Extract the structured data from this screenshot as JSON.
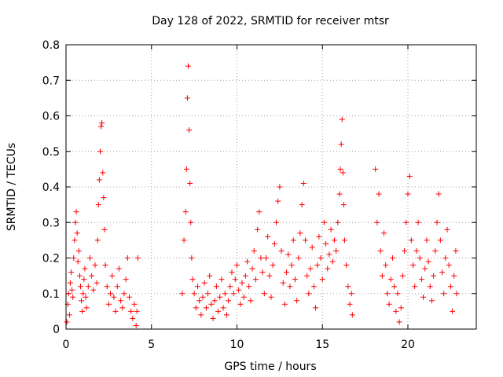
{
  "chart_data": {
    "type": "scatter",
    "title": "Day 128 of 2022, SRMTID for receiver mtsr",
    "xlabel": "GPS time / hours",
    "ylabel": "SRMTID / TECUs",
    "xlim": [
      0,
      24
    ],
    "ylim": [
      0,
      0.8
    ],
    "x_ticks": [
      0,
      5,
      10,
      15,
      20
    ],
    "x_tick_labels": [
      "0",
      "5",
      "10",
      "15",
      "20"
    ],
    "y_ticks": [
      0,
      0.1,
      0.2,
      0.3,
      0.4,
      0.5,
      0.6,
      0.7,
      0.8
    ],
    "y_tick_labels": [
      "0",
      "0.1",
      "0.2",
      "0.3",
      "0.4",
      "0.5",
      "0.6",
      "0.7",
      "0.8"
    ],
    "grid": true,
    "marker": "+",
    "marker_color": "#ff0000",
    "series": [
      {
        "name": "SRMTID",
        "points": [
          [
            0.05,
            0.02
          ],
          [
            0.1,
            0.07
          ],
          [
            0.15,
            0.1
          ],
          [
            0.2,
            0.04
          ],
          [
            0.25,
            0.13
          ],
          [
            0.3,
            0.16
          ],
          [
            0.35,
            0.11
          ],
          [
            0.4,
            0.09
          ],
          [
            0.45,
            0.2
          ],
          [
            0.5,
            0.25
          ],
          [
            0.55,
            0.3
          ],
          [
            0.6,
            0.33
          ],
          [
            0.65,
            0.27
          ],
          [
            0.7,
            0.19
          ],
          [
            0.75,
            0.22
          ],
          [
            0.8,
            0.15
          ],
          [
            0.85,
            0.12
          ],
          [
            0.9,
            0.08
          ],
          [
            0.95,
            0.05
          ],
          [
            1.0,
            0.1
          ],
          [
            1.05,
            0.14
          ],
          [
            1.1,
            0.17
          ],
          [
            1.15,
            0.09
          ],
          [
            1.2,
            0.06
          ],
          [
            1.3,
            0.12
          ],
          [
            1.4,
            0.2
          ],
          [
            1.5,
            0.15
          ],
          [
            1.6,
            0.11
          ],
          [
            1.7,
            0.18
          ],
          [
            1.8,
            0.13
          ],
          [
            1.85,
            0.25
          ],
          [
            1.9,
            0.35
          ],
          [
            1.95,
            0.42
          ],
          [
            2.0,
            0.5
          ],
          [
            2.05,
            0.57
          ],
          [
            2.1,
            0.58
          ],
          [
            2.15,
            0.44
          ],
          [
            2.2,
            0.37
          ],
          [
            2.25,
            0.28
          ],
          [
            2.3,
            0.18
          ],
          [
            2.4,
            0.12
          ],
          [
            2.5,
            0.07
          ],
          [
            2.6,
            0.1
          ],
          [
            2.7,
            0.15
          ],
          [
            2.8,
            0.09
          ],
          [
            2.9,
            0.05
          ],
          [
            3.0,
            0.12
          ],
          [
            3.1,
            0.17
          ],
          [
            3.2,
            0.08
          ],
          [
            3.3,
            0.06
          ],
          [
            3.4,
            0.1
          ],
          [
            3.5,
            0.14
          ],
          [
            3.6,
            0.2
          ],
          [
            3.7,
            0.09
          ],
          [
            3.8,
            0.05
          ],
          [
            3.9,
            0.03
          ],
          [
            4.0,
            0.07
          ],
          [
            4.1,
            0.01
          ],
          [
            4.15,
            0.05
          ],
          [
            4.2,
            0.2
          ],
          [
            6.8,
            0.1
          ],
          [
            6.9,
            0.25
          ],
          [
            7.0,
            0.33
          ],
          [
            7.05,
            0.45
          ],
          [
            7.1,
            0.65
          ],
          [
            7.15,
            0.74
          ],
          [
            7.2,
            0.56
          ],
          [
            7.25,
            0.41
          ],
          [
            7.3,
            0.3
          ],
          [
            7.35,
            0.2
          ],
          [
            7.4,
            0.14
          ],
          [
            7.5,
            0.1
          ],
          [
            7.6,
            0.06
          ],
          [
            7.7,
            0.12
          ],
          [
            7.8,
            0.08
          ],
          [
            7.9,
            0.04
          ],
          [
            8.0,
            0.09
          ],
          [
            8.1,
            0.13
          ],
          [
            8.2,
            0.06
          ],
          [
            8.3,
            0.1
          ],
          [
            8.4,
            0.15
          ],
          [
            8.5,
            0.07
          ],
          [
            8.6,
            0.03
          ],
          [
            8.7,
            0.08
          ],
          [
            8.8,
            0.12
          ],
          [
            8.9,
            0.05
          ],
          [
            9.0,
            0.09
          ],
          [
            9.1,
            0.14
          ],
          [
            9.2,
            0.06
          ],
          [
            9.3,
            0.1
          ],
          [
            9.4,
            0.04
          ],
          [
            9.5,
            0.08
          ],
          [
            9.6,
            0.12
          ],
          [
            9.7,
            0.16
          ],
          [
            9.8,
            0.1
          ],
          [
            9.9,
            0.14
          ],
          [
            10.0,
            0.18
          ],
          [
            10.1,
            0.11
          ],
          [
            10.2,
            0.07
          ],
          [
            10.3,
            0.13
          ],
          [
            10.4,
            0.09
          ],
          [
            10.5,
            0.15
          ],
          [
            10.6,
            0.19
          ],
          [
            10.7,
            0.12
          ],
          [
            10.8,
            0.08
          ],
          [
            10.9,
            0.17
          ],
          [
            11.0,
            0.22
          ],
          [
            11.1,
            0.14
          ],
          [
            11.2,
            0.28
          ],
          [
            11.3,
            0.33
          ],
          [
            11.4,
            0.2
          ],
          [
            11.5,
            0.16
          ],
          [
            11.6,
            0.1
          ],
          [
            11.7,
            0.2
          ],
          [
            11.8,
            0.26
          ],
          [
            11.9,
            0.15
          ],
          [
            12.0,
            0.09
          ],
          [
            12.1,
            0.18
          ],
          [
            12.2,
            0.24
          ],
          [
            12.3,
            0.3
          ],
          [
            12.4,
            0.36
          ],
          [
            12.5,
            0.4
          ],
          [
            12.6,
            0.22
          ],
          [
            12.7,
            0.13
          ],
          [
            12.8,
            0.07
          ],
          [
            12.9,
            0.16
          ],
          [
            13.0,
            0.21
          ],
          [
            13.1,
            0.12
          ],
          [
            13.2,
            0.18
          ],
          [
            13.3,
            0.25
          ],
          [
            13.4,
            0.14
          ],
          [
            13.5,
            0.08
          ],
          [
            13.6,
            0.2
          ],
          [
            13.7,
            0.27
          ],
          [
            13.8,
            0.35
          ],
          [
            13.9,
            0.41
          ],
          [
            14.0,
            0.25
          ],
          [
            14.1,
            0.15
          ],
          [
            14.2,
            0.1
          ],
          [
            14.3,
            0.17
          ],
          [
            14.4,
            0.23
          ],
          [
            14.5,
            0.12
          ],
          [
            14.6,
            0.06
          ],
          [
            14.7,
            0.18
          ],
          [
            14.8,
            0.26
          ],
          [
            14.9,
            0.2
          ],
          [
            15.0,
            0.14
          ],
          [
            15.1,
            0.3
          ],
          [
            15.2,
            0.24
          ],
          [
            15.3,
            0.17
          ],
          [
            15.4,
            0.21
          ],
          [
            15.5,
            0.28
          ],
          [
            15.6,
            0.19
          ],
          [
            15.7,
            0.25
          ],
          [
            15.8,
            0.22
          ],
          [
            15.9,
            0.3
          ],
          [
            16.0,
            0.38
          ],
          [
            16.05,
            0.45
          ],
          [
            16.1,
            0.52
          ],
          [
            16.15,
            0.59
          ],
          [
            16.2,
            0.44
          ],
          [
            16.25,
            0.35
          ],
          [
            16.3,
            0.25
          ],
          [
            16.4,
            0.18
          ],
          [
            16.5,
            0.12
          ],
          [
            16.6,
            0.07
          ],
          [
            16.7,
            0.1
          ],
          [
            16.75,
            0.04
          ],
          [
            18.1,
            0.45
          ],
          [
            18.2,
            0.3
          ],
          [
            18.3,
            0.38
          ],
          [
            18.4,
            0.22
          ],
          [
            18.5,
            0.15
          ],
          [
            18.6,
            0.27
          ],
          [
            18.7,
            0.18
          ],
          [
            18.8,
            0.1
          ],
          [
            18.9,
            0.07
          ],
          [
            19.0,
            0.14
          ],
          [
            19.1,
            0.2
          ],
          [
            19.2,
            0.12
          ],
          [
            19.3,
            0.05
          ],
          [
            19.4,
            0.1
          ],
          [
            19.5,
            0.02
          ],
          [
            19.6,
            0.06
          ],
          [
            19.7,
            0.15
          ],
          [
            19.8,
            0.22
          ],
          [
            19.9,
            0.3
          ],
          [
            20.0,
            0.38
          ],
          [
            20.1,
            0.43
          ],
          [
            20.2,
            0.25
          ],
          [
            20.3,
            0.18
          ],
          [
            20.4,
            0.12
          ],
          [
            20.5,
            0.22
          ],
          [
            20.6,
            0.3
          ],
          [
            20.7,
            0.2
          ],
          [
            20.8,
            0.14
          ],
          [
            20.9,
            0.09
          ],
          [
            21.0,
            0.17
          ],
          [
            21.1,
            0.25
          ],
          [
            21.2,
            0.19
          ],
          [
            21.3,
            0.12
          ],
          [
            21.4,
            0.08
          ],
          [
            21.5,
            0.15
          ],
          [
            21.6,
            0.22
          ],
          [
            21.7,
            0.3
          ],
          [
            21.8,
            0.38
          ],
          [
            21.9,
            0.25
          ],
          [
            22.0,
            0.16
          ],
          [
            22.1,
            0.1
          ],
          [
            22.2,
            0.2
          ],
          [
            22.3,
            0.28
          ],
          [
            22.4,
            0.18
          ],
          [
            22.5,
            0.12
          ],
          [
            22.6,
            0.05
          ],
          [
            22.7,
            0.15
          ],
          [
            22.8,
            0.22
          ],
          [
            22.85,
            0.1
          ]
        ]
      }
    ]
  }
}
